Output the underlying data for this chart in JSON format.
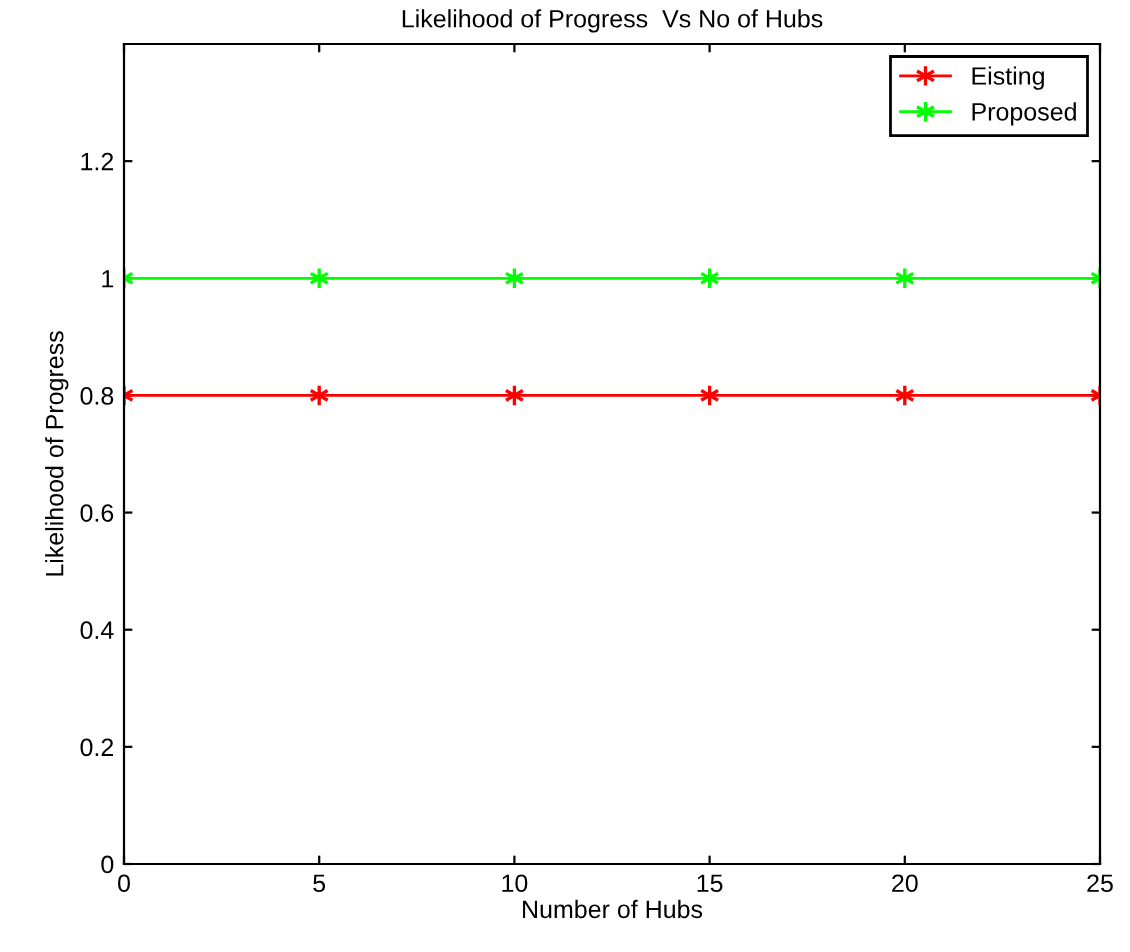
{
  "chart_data": {
    "type": "line",
    "title": "Likelihood of Progress  Vs No of Hubs",
    "xlabel": "Number of Hubs",
    "ylabel": "Likelihood of Progress",
    "x": [
      0,
      5,
      10,
      15,
      20,
      25
    ],
    "series": [
      {
        "name": "Eisting",
        "color": "#ff0000",
        "values": [
          0.8,
          0.8,
          0.8,
          0.8,
          0.8,
          0.8
        ]
      },
      {
        "name": "Proposed",
        "color": "#00ff00",
        "values": [
          1,
          1,
          1,
          1,
          1,
          1
        ]
      }
    ],
    "xlim": [
      0,
      25
    ],
    "ylim": [
      0,
      1.4
    ],
    "xticks": [
      0,
      5,
      10,
      15,
      20,
      25
    ],
    "yticks": [
      0,
      0.2,
      0.4,
      0.6,
      0.8,
      1,
      1.2
    ],
    "grid": false,
    "legend": "top right",
    "marker": "cross",
    "line_style": "solid"
  }
}
